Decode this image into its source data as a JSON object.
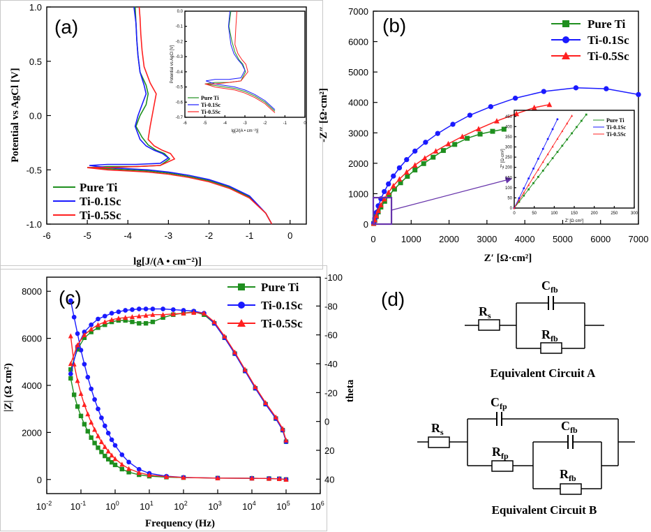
{
  "colors": {
    "pure_ti": "#1f8f1f",
    "ti_01sc": "#1a1aff",
    "ti_05sc": "#ff2020",
    "zoom_box": "#6633aa"
  },
  "panel_labels": {
    "a": "(a)",
    "b": "(b)",
    "c": "(c)",
    "d": "(d)"
  },
  "chart_data": [
    {
      "id": "a",
      "type": "line",
      "xlabel": "lg[J/(A • cm⁻²)]",
      "ylabel": "Potential vs AgCl [V]",
      "xlim": [
        -6,
        0.4
      ],
      "ylim": [
        -1.0,
        1.0
      ],
      "xticks": [
        "-6",
        "-5",
        "-4",
        "-3",
        "-2",
        "-1",
        "0"
      ],
      "yticks": [
        "-1.0",
        "-0.5",
        "0.0",
        "0.5",
        "1.0"
      ],
      "legend": [
        "Pure Ti",
        "Ti-0.1Sc",
        "Ti-0.5Sc"
      ],
      "legend_position": "bottom-left",
      "series": [
        {
          "name": "Pure Ti",
          "x": [
            -0.45,
            -0.6,
            -1,
            -1.5,
            -2,
            -2.5,
            -3,
            -3.5,
            -4,
            -4.5,
            -5,
            -4.5,
            -3.8,
            -3.2,
            -2.97,
            -3.1,
            -3.3,
            -3.5,
            -3.65,
            -3.8,
            -3.7,
            -3.55,
            -3.5,
            -3.55,
            -3.7,
            -3.75,
            -3.78,
            -3.8,
            -3.82
          ],
          "y": [
            -1.0,
            -0.9,
            -0.75,
            -0.66,
            -0.6,
            -0.56,
            -0.53,
            -0.51,
            -0.5,
            -0.49,
            -0.48,
            -0.47,
            -0.47,
            -0.46,
            -0.4,
            -0.35,
            -0.32,
            -0.27,
            -0.2,
            -0.1,
            0.0,
            0.1,
            0.2,
            0.28,
            0.4,
            0.55,
            0.7,
            0.85,
            1.0
          ]
        },
        {
          "name": "Ti-0.1Sc",
          "x": [
            -0.45,
            -0.6,
            -1,
            -1.5,
            -2,
            -2.5,
            -3,
            -3.5,
            -4,
            -4.5,
            -4.95,
            -4.5,
            -3.8,
            -3.2,
            -3.0,
            -3.15,
            -3.35,
            -3.55,
            -3.7,
            -3.82,
            -3.75,
            -3.65,
            -3.55,
            -3.6,
            -3.7,
            -3.75,
            -3.78,
            -3.8,
            -3.85
          ],
          "y": [
            -1.0,
            -0.9,
            -0.74,
            -0.65,
            -0.59,
            -0.55,
            -0.52,
            -0.5,
            -0.49,
            -0.48,
            -0.46,
            -0.45,
            -0.45,
            -0.44,
            -0.39,
            -0.35,
            -0.32,
            -0.28,
            -0.22,
            -0.1,
            0.0,
            0.1,
            0.2,
            0.28,
            0.4,
            0.55,
            0.7,
            0.85,
            1.0
          ]
        },
        {
          "name": "Ti-0.5Sc",
          "x": [
            -0.45,
            -0.6,
            -1,
            -1.5,
            -2,
            -2.5,
            -3,
            -3.5,
            -4,
            -4.5,
            -5,
            -4.5,
            -3.8,
            -3.2,
            -2.85,
            -2.95,
            -3.15,
            -3.35,
            -3.5,
            -3.45,
            -3.4,
            -3.35,
            -3.3,
            -3.45,
            -3.6,
            -3.65,
            -3.68,
            -3.7,
            -3.72
          ],
          "y": [
            -1.0,
            -0.9,
            -0.76,
            -0.67,
            -0.61,
            -0.57,
            -0.54,
            -0.52,
            -0.51,
            -0.5,
            -0.48,
            -0.48,
            -0.47,
            -0.46,
            -0.4,
            -0.35,
            -0.32,
            -0.28,
            -0.22,
            -0.1,
            0.0,
            0.1,
            0.2,
            0.3,
            0.45,
            0.6,
            0.75,
            0.9,
            1.0
          ]
        }
      ],
      "inset": {
        "xlabel": "lg[J/(A • cm⁻²)]",
        "ylabel": "Potential vs AgCl [V]",
        "xlim": [
          -6,
          0
        ],
        "ylim": [
          -0.7,
          0.0
        ],
        "xticks": [
          "-6",
          "-5",
          "-4",
          "-3",
          "-2",
          "-1",
          "0"
        ],
        "yticks": [
          "0.0",
          "-0.1",
          "-0.2",
          "-0.3",
          "-0.4",
          "-0.5",
          "-0.6",
          "-0.7"
        ],
        "legend": [
          "Pure Ti",
          "Ti-0.1Sc",
          "Ti-0.5Sc"
        ]
      }
    },
    {
      "id": "b",
      "type": "scatter",
      "xlabel": "Z′ [Ω·cm²]",
      "ylabel": "-Z″ [Ω·cm²]",
      "xlim": [
        0,
        7000
      ],
      "ylim": [
        0,
        7000
      ],
      "xticks": [
        "0",
        "1000",
        "2000",
        "3000",
        "4000",
        "5000",
        "6000",
        "7000"
      ],
      "yticks": [
        "0",
        "1000",
        "2000",
        "3000",
        "4000",
        "5000",
        "6000",
        "7000"
      ],
      "legend": [
        "Pure Ti",
        "Ti-0.1Sc",
        "Ti-0.5Sc"
      ],
      "legend_position": "top-right",
      "series": [
        {
          "name": "Pure Ti",
          "x": [
            10,
            40,
            80,
            130,
            200,
            300,
            420,
            560,
            720,
            900,
            1100,
            1330,
            1580,
            1850,
            2150,
            2480,
            2820,
            3150,
            3450
          ],
          "y": [
            20,
            120,
            250,
            400,
            560,
            750,
            950,
            1150,
            1360,
            1570,
            1780,
            1990,
            2200,
            2420,
            2620,
            2820,
            2960,
            3050,
            3120
          ]
        },
        {
          "name": "Ti-0.1Sc",
          "x": [
            10,
            40,
            80,
            130,
            200,
            290,
            400,
            530,
            690,
            880,
            1100,
            1380,
            1700,
            2100,
            2550,
            3100,
            3750,
            4500,
            5350,
            6150,
            7000
          ],
          "y": [
            30,
            190,
            380,
            600,
            830,
            1070,
            1320,
            1580,
            1850,
            2120,
            2400,
            2690,
            2980,
            3280,
            3580,
            3860,
            4140,
            4360,
            4480,
            4450,
            4260
          ]
        },
        {
          "name": "Ti-0.5Sc",
          "x": [
            10,
            40,
            80,
            130,
            200,
            290,
            400,
            530,
            690,
            880,
            1100,
            1360,
            1650,
            1980,
            2350,
            2780,
            3260,
            3780,
            4250,
            4650
          ],
          "y": [
            25,
            140,
            280,
            450,
            630,
            830,
            1040,
            1260,
            1480,
            1710,
            1940,
            2170,
            2400,
            2640,
            2880,
            3130,
            3390,
            3630,
            3830,
            3930
          ]
        }
      ],
      "zoom_range": {
        "x": [
          0,
          480
        ],
        "y": [
          0,
          870
        ]
      },
      "inset": {
        "xlabel": "Z′ [Ω·cm²]",
        "ylabel": "-Z″ [Ω·cm²]",
        "xlim": [
          0,
          300
        ],
        "ylim": [
          0,
          480
        ],
        "xticks": [
          "0",
          "50",
          "100",
          "150",
          "200",
          "250",
          "300"
        ],
        "yticks": [
          "0",
          "50",
          "100",
          "150",
          "200",
          "250",
          "300",
          "350",
          "400",
          "450"
        ],
        "legend": [
          "Pure Ti",
          "Ti-0.1Sc",
          "Ti-0.5Sc"
        ]
      }
    },
    {
      "id": "c",
      "type": "scatter",
      "xlabel": "Frequency (Hz)",
      "ylabel": "|Z| (Ω cm²)",
      "y2label": "theta",
      "xscale": "log",
      "xlim": [
        0.01,
        1000000
      ],
      "ylim": [
        -600,
        8600
      ],
      "y2lim": [
        50,
        -100
      ],
      "xticks": [
        "-2",
        "-1",
        "0",
        "1",
        "2",
        "3",
        "4",
        "5",
        "6"
      ],
      "yticks": [
        "0",
        "2000",
        "4000",
        "6000",
        "8000"
      ],
      "y2ticks": [
        "-100",
        "-80",
        "-60",
        "-40",
        "-20",
        "0",
        "20",
        "40"
      ],
      "legend": [
        "Pure Ti",
        "Ti-0.1Sc",
        "Ti-0.5Sc"
      ],
      "legend_position": "top-right",
      "modulus_series": [
        {
          "name": "Pure Ti",
          "logf": [
            -1.3,
            -1.2,
            -1.1,
            -1.0,
            -0.9,
            -0.8,
            -0.7,
            -0.6,
            -0.5,
            -0.4,
            -0.3,
            -0.2,
            -0.1,
            0.0,
            0.2,
            0.4,
            0.7,
            1.0,
            1.5,
            2.0,
            3.0,
            4.0,
            4.5,
            4.8,
            5.0
          ],
          "values": [
            4300,
            3600,
            3100,
            2700,
            2350,
            2050,
            1780,
            1550,
            1350,
            1170,
            1000,
            860,
            730,
            620,
            440,
            310,
            200,
            140,
            100,
            80,
            60,
            50,
            40,
            30,
            0
          ]
        },
        {
          "name": "Ti-0.1Sc",
          "logf": [
            -1.3,
            -1.2,
            -1.1,
            -1.0,
            -0.9,
            -0.8,
            -0.7,
            -0.6,
            -0.5,
            -0.4,
            -0.3,
            -0.2,
            -0.1,
            0.0,
            0.2,
            0.4,
            0.7,
            1.0,
            1.5,
            2.0,
            3.0,
            4.0,
            4.5,
            4.8,
            5.0
          ],
          "values": [
            7600,
            6900,
            6200,
            5500,
            4900,
            4350,
            3850,
            3400,
            3000,
            2620,
            2280,
            1970,
            1690,
            1450,
            1050,
            740,
            430,
            260,
            140,
            90,
            60,
            50,
            40,
            30,
            0
          ]
        },
        {
          "name": "Ti-0.5Sc",
          "logf": [
            -1.3,
            -1.2,
            -1.1,
            -1.0,
            -0.9,
            -0.8,
            -0.7,
            -0.6,
            -0.5,
            -0.4,
            -0.3,
            -0.2,
            -0.1,
            0.0,
            0.2,
            0.4,
            0.7,
            1.0,
            1.5,
            2.0,
            3.0,
            4.0,
            4.5,
            4.8,
            5.0
          ],
          "values": [
            6100,
            4900,
            4200,
            3650,
            3180,
            2780,
            2430,
            2120,
            1850,
            1600,
            1390,
            1200,
            1030,
            880,
            640,
            460,
            290,
            190,
            120,
            85,
            60,
            50,
            40,
            30,
            0
          ]
        }
      ],
      "phase_series": [
        {
          "name": "Pure Ti",
          "logf": [
            -1.3,
            -1.1,
            -0.9,
            -0.7,
            -0.5,
            -0.3,
            -0.1,
            0.1,
            0.3,
            0.5,
            0.7,
            0.9,
            1.1,
            1.4,
            1.7,
            2.0,
            2.3,
            2.6,
            2.9,
            3.2,
            3.5,
            3.8,
            4.1,
            4.4,
            4.7,
            4.9,
            5.0
          ],
          "theta": [
            -36,
            -50,
            -58,
            -62,
            -65,
            -67,
            -69,
            -70,
            -70,
            -69,
            -68,
            -68,
            -69,
            -72,
            -74,
            -75,
            -76,
            -74,
            -68,
            -58,
            -47,
            -35,
            -23,
            -12,
            -2,
            6,
            14
          ]
        },
        {
          "name": "Ti-0.1Sc",
          "logf": [
            -1.3,
            -1.1,
            -0.9,
            -0.7,
            -0.5,
            -0.3,
            -0.1,
            0.1,
            0.3,
            0.5,
            0.7,
            0.9,
            1.1,
            1.4,
            1.7,
            2.0,
            2.3,
            2.6,
            2.9,
            3.2,
            3.5,
            3.8,
            4.1,
            4.4,
            4.7,
            4.9,
            5.0
          ],
          "theta": [
            -33,
            -52,
            -62,
            -67,
            -71,
            -73,
            -75,
            -76,
            -77,
            -77.5,
            -78,
            -78,
            -78,
            -78,
            -77.5,
            -77,
            -76.5,
            -75,
            -68,
            -58,
            -47,
            -35,
            -23,
            -12,
            -2,
            6,
            14
          ]
        },
        {
          "name": "Ti-0.5Sc",
          "logf": [
            -1.3,
            -1.1,
            -0.9,
            -0.7,
            -0.5,
            -0.3,
            -0.1,
            0.1,
            0.3,
            0.5,
            0.7,
            0.9,
            1.1,
            1.4,
            1.7,
            2.0,
            2.3,
            2.6,
            2.9,
            3.2,
            3.5,
            3.8,
            4.1,
            4.4,
            4.7,
            4.9,
            5.0
          ],
          "theta": [
            -40,
            -53,
            -60,
            -64,
            -67,
            -69,
            -70.5,
            -71.5,
            -72,
            -72.5,
            -73,
            -73.5,
            -74,
            -74,
            -74.5,
            -75,
            -75.5,
            -75,
            -69,
            -59,
            -48,
            -36,
            -24,
            -13,
            -3,
            5,
            13
          ]
        }
      ]
    }
  ],
  "circuits": {
    "a_title": "Equivalent Circuit A",
    "b_title": "Equivalent Circuit B",
    "rs": "R",
    "rs_sub": "s",
    "cfb": "C",
    "cfb_sub": "fb",
    "rfb": "R",
    "rfb_sub": "fb",
    "cfp": "C",
    "cfp_sub": "fp",
    "rfp": "R",
    "rfp_sub": "fp"
  }
}
